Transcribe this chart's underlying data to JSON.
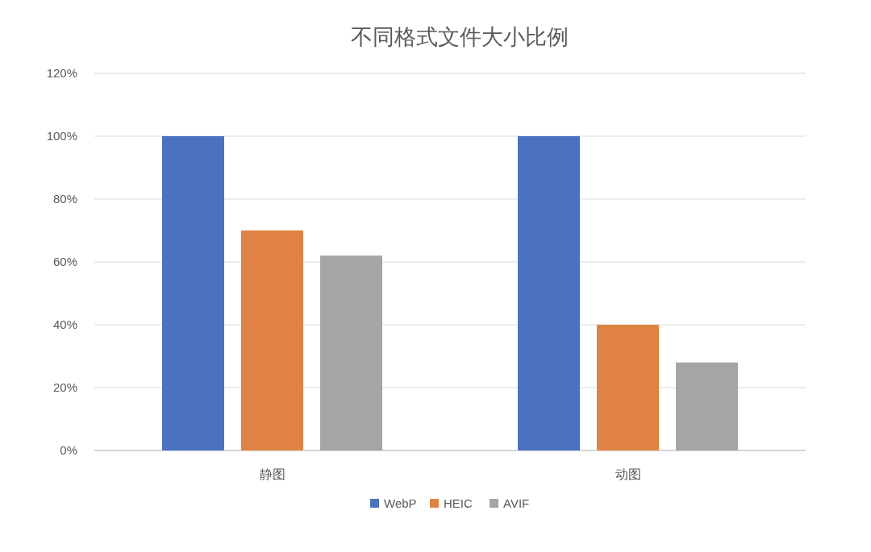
{
  "chart_data": {
    "type": "bar",
    "title": "不同格式文件大小比例",
    "categories": [
      "静图",
      "动图"
    ],
    "series": [
      {
        "name": "WebP",
        "color": "#4a72c0",
        "values": [
          100,
          100
        ]
      },
      {
        "name": "HEIC",
        "color": "#e08244",
        "values": [
          70,
          40
        ]
      },
      {
        "name": "AVIF",
        "color": "#a5a5a5",
        "values": [
          62,
          28
        ]
      }
    ],
    "ylim": [
      0,
      120
    ],
    "yticks": [
      {
        "value": 0,
        "label": "0%"
      },
      {
        "value": 20,
        "label": "20%"
      },
      {
        "value": 40,
        "label": "40%"
      },
      {
        "value": 60,
        "label": "60%"
      },
      {
        "value": 80,
        "label": "80%"
      },
      {
        "value": 100,
        "label": "100%"
      },
      {
        "value": 120,
        "label": "120%"
      }
    ],
    "grid": "y",
    "legend": "bottom"
  }
}
